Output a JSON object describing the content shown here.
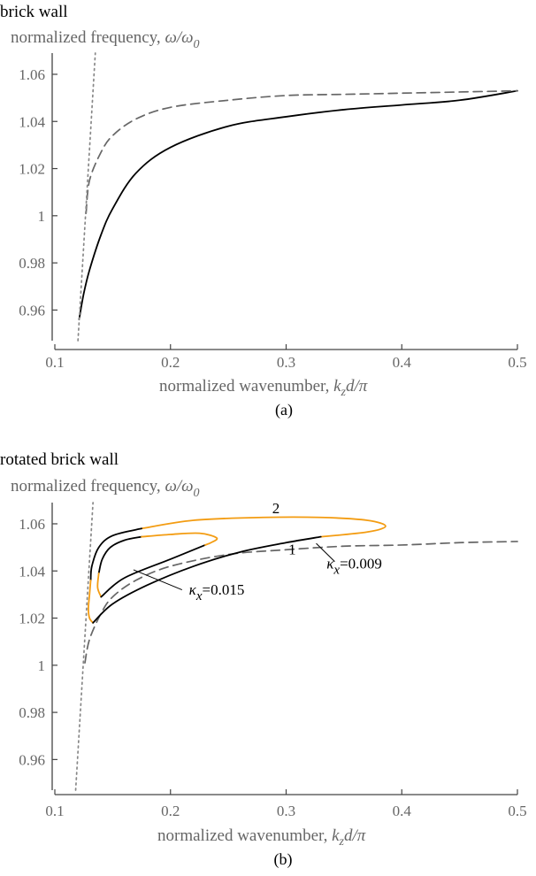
{
  "chart_data": [
    {
      "type": "line",
      "title": "brick wall",
      "ylabel_text": "normalized frequency, ",
      "ylabel_math": "ω/ω",
      "ylabel_sub": "0",
      "xlabel_text": "normalized wavenumber, ",
      "xlabel_k": "k",
      "xlabel_z": "z",
      "xlabel_rest": "d/π",
      "caption": "(a)",
      "xlim": [
        0.1,
        0.5
      ],
      "ylim": [
        0.947,
        1.069
      ],
      "xticks": [
        "0.1",
        "0.2",
        "0.3",
        "0.4",
        "0.5"
      ],
      "yticks": [
        "0.96",
        "0.98",
        "1",
        "1.02",
        "1.04",
        "1.06"
      ],
      "xtick_values": [
        0.1,
        0.2,
        0.3,
        0.4,
        0.5
      ],
      "ytick_values": [
        0.96,
        0.98,
        1.0,
        1.02,
        1.04,
        1.06
      ],
      "grid": false,
      "series": [
        {
          "style": "solid",
          "color": "#000000",
          "x": [
            0.121,
            0.125,
            0.13,
            0.14,
            0.15,
            0.17,
            0.2,
            0.25,
            0.3,
            0.35,
            0.4,
            0.45,
            0.5
          ],
          "y": [
            0.956,
            0.967,
            0.977,
            0.992,
            1.003,
            1.018,
            1.029,
            1.038,
            1.042,
            1.045,
            1.047,
            1.049,
            1.053
          ]
        },
        {
          "style": "dashed",
          "color": "#666666",
          "x": [
            0.127,
            0.13,
            0.14,
            0.15,
            0.17,
            0.2,
            0.25,
            0.3,
            0.35,
            0.4,
            0.45,
            0.5
          ],
          "y": [
            1.001,
            1.015,
            1.027,
            1.034,
            1.041,
            1.046,
            1.049,
            1.051,
            1.0515,
            1.052,
            1.0525,
            1.053
          ]
        },
        {
          "style": "dotted",
          "color": "#888888",
          "x": [
            0.12,
            0.135
          ],
          "y": [
            0.947,
            1.069
          ]
        }
      ],
      "annotations": []
    },
    {
      "type": "line",
      "title": "rotated brick wall",
      "ylabel_text": "normalized frequency, ",
      "ylabel_math": "ω/ω",
      "ylabel_sub": "0",
      "xlabel_text": "normalized wavenumber, ",
      "xlabel_k": "k",
      "xlabel_z": "z",
      "xlabel_rest": "d/π",
      "caption": "(b)",
      "xlim": [
        0.1,
        0.5
      ],
      "ylim": [
        0.947,
        1.069
      ],
      "xticks": [
        "0.1",
        "0.2",
        "0.3",
        "0.4",
        "0.5"
      ],
      "yticks": [
        "0.96",
        "0.98",
        "1",
        "1.02",
        "1.04",
        "1.06"
      ],
      "xtick_values": [
        0.1,
        0.2,
        0.3,
        0.4,
        0.5
      ],
      "ytick_values": [
        0.96,
        0.98,
        1.0,
        1.02,
        1.04,
        1.06
      ],
      "grid": false,
      "series": [
        {
          "style": "dashed",
          "color": "#666666",
          "x": [
            0.126,
            0.13,
            0.14,
            0.15,
            0.17,
            0.2,
            0.25,
            0.3,
            0.35,
            0.4,
            0.45,
            0.5
          ],
          "y": [
            1.001,
            1.011,
            1.022,
            1.029,
            1.036,
            1.042,
            1.047,
            1.049,
            1.0505,
            1.051,
            1.052,
            1.0525
          ]
        },
        {
          "style": "dotted",
          "color": "#888888",
          "x": [
            0.118,
            0.133
          ],
          "y": [
            0.947,
            1.069
          ]
        },
        {
          "style": "solid",
          "color": "#f39c12",
          "x": [
            0.175,
            0.22,
            0.28,
            0.33,
            0.37,
            0.386,
            0.37,
            0.33
          ],
          "y": [
            1.058,
            1.0615,
            1.0627,
            1.0627,
            1.0615,
            1.059,
            1.0565,
            1.0545
          ]
        },
        {
          "style": "solid",
          "color": "#000000",
          "x": [
            0.175,
            0.15,
            0.138,
            0.132,
            0.131
          ],
          "y": [
            1.058,
            1.055,
            1.05,
            1.042,
            1.036
          ]
        },
        {
          "style": "solid",
          "color": "#f39c12",
          "x": [
            0.131,
            0.13,
            0.129,
            0.13,
            0.133
          ],
          "y": [
            1.036,
            1.03,
            1.024,
            1.02,
            1.018
          ]
        },
        {
          "style": "solid",
          "color": "#000000",
          "x": [
            0.133,
            0.15,
            0.18,
            0.22,
            0.26,
            0.3,
            0.33
          ],
          "y": [
            1.018,
            1.026,
            1.034,
            1.042,
            1.048,
            1.052,
            1.0545
          ]
        },
        {
          "style": "solid",
          "color": "#000000",
          "x": [
            0.175,
            0.16,
            0.148,
            0.141,
            0.138
          ],
          "y": [
            1.0545,
            1.053,
            1.05,
            1.045,
            1.039
          ]
        },
        {
          "style": "solid",
          "color": "#f39c12",
          "x": [
            0.138,
            0.137,
            0.14
          ],
          "y": [
            1.039,
            1.033,
            1.029
          ]
        },
        {
          "style": "solid",
          "color": "#000000",
          "x": [
            0.14,
            0.16,
            0.2,
            0.23
          ],
          "y": [
            1.029,
            1.037,
            1.045,
            1.051
          ]
        },
        {
          "style": "solid",
          "color": "#f39c12",
          "x": [
            0.175,
            0.2,
            0.225,
            0.24,
            0.235,
            0.23
          ],
          "y": [
            1.0545,
            1.0555,
            1.056,
            1.054,
            1.052,
            1.051
          ]
        }
      ],
      "annotations": [
        {
          "text": "2",
          "x": 0.288,
          "y": 1.0645
        },
        {
          "text": "1",
          "x": 0.302,
          "y": 1.047
        },
        {
          "text": "κ",
          "sub": "x",
          "rest": "=0.009",
          "x": 0.335,
          "y": 1.041,
          "lx1": 0.326,
          "ly1": 1.0517,
          "lx2": 0.342,
          "ly2": 1.044
        },
        {
          "text": "κ",
          "sub": "x",
          "rest": "=0.015",
          "x": 0.216,
          "y": 1.03,
          "lx1": 0.168,
          "ly1": 1.0405,
          "lx2": 0.21,
          "ly2": 1.032
        }
      ]
    }
  ]
}
